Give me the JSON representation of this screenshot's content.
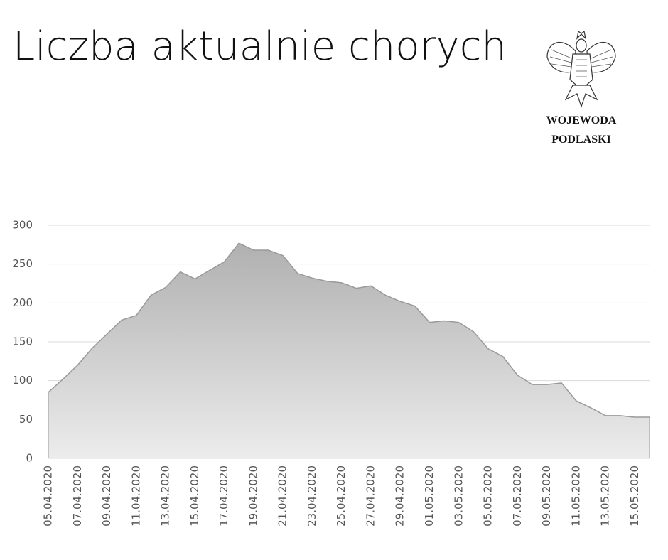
{
  "chart_data": {
    "type": "area",
    "title": "Liczba aktualnie chorych",
    "logo_lines": [
      "WOJEWODA",
      "PODLASKI"
    ],
    "categories": [
      "05.04.2020",
      null,
      "07.04.2020",
      null,
      "09.04.2020",
      null,
      "11.04.2020",
      null,
      "13.04.2020",
      null,
      "15.04.2020",
      null,
      "17.04.2020",
      null,
      "19.04.2020",
      null,
      "21.04.2020",
      null,
      "23.04.2020",
      null,
      "25.04.2020",
      null,
      "27.04.2020",
      null,
      "29.04.2020",
      null,
      "01.05.2020",
      null,
      "03.05.2020",
      null,
      "05.05.2020",
      null,
      "07.05.2020",
      null,
      "09.05.2020",
      null,
      "11.05.2020",
      null,
      "13.05.2020",
      null,
      "15.05.2020",
      null
    ],
    "values": [
      85,
      102,
      120,
      142,
      160,
      178,
      184,
      210,
      220,
      240,
      231,
      242,
      253,
      277,
      268,
      268,
      261,
      238,
      232,
      228,
      226,
      219,
      222,
      210,
      202,
      196,
      175,
      177,
      175,
      163,
      141,
      131,
      107,
      95,
      95,
      97,
      74,
      65,
      55,
      55,
      53,
      53
    ],
    "color": "#b4b4b4",
    "ylim": [
      0,
      300
    ],
    "yticks": [
      0,
      50,
      100,
      150,
      200,
      250,
      300
    ],
    "grid": true
  }
}
